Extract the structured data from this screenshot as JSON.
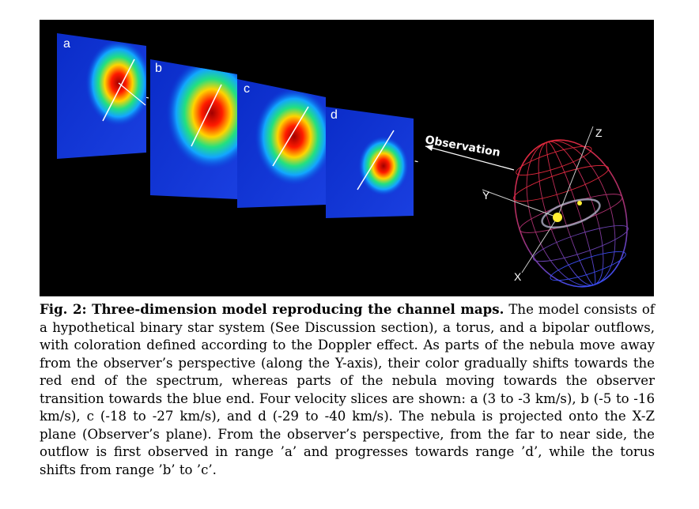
{
  "figure": {
    "panels": [
      {
        "label": "a",
        "velocity_range_kms": "3 to -3"
      },
      {
        "label": "b",
        "velocity_range_kms": "-5 to -16"
      },
      {
        "label": "c",
        "velocity_range_kms": "-18 to -27"
      },
      {
        "label": "d",
        "velocity_range_kms": "-29 to -40"
      }
    ],
    "observation_label": "Observation",
    "axis_labels": {
      "x": "X",
      "y": "Y",
      "z": "Z"
    },
    "colors": {
      "background": "#000000",
      "redshift": "#e0283c",
      "blueshift": "#3a4cf0",
      "star": "#ffee33"
    }
  },
  "caption": {
    "prefix": "Fig. 2",
    "title": ": Three-dimension model reproducing the channel maps.",
    "body": " The model consists of a hypothetical binary star system (See Discussion section), a torus, and a bipolar outflows, with coloration defined according to the Doppler effect. As parts of the nebula move away from the observer’s perspective (along the Y-axis), their color gradually shifts towards the red end of the spectrum, whereas parts of the nebula moving towards the observer transition towards the blue end. Four velocity slices are shown: a (3 to -3 km/s), b (-5 to -16 km/s), c (-18 to -27 km/s), and d (-29 to -40 km/s). The nebula is projected onto the X-Z plane (Observer’s plane). From the observer’s perspective, from the far to near side, the outflow is first observed in range ’a’ and progresses towards range ’d’, while the torus shifts from range ’b’ to ’c’."
  }
}
